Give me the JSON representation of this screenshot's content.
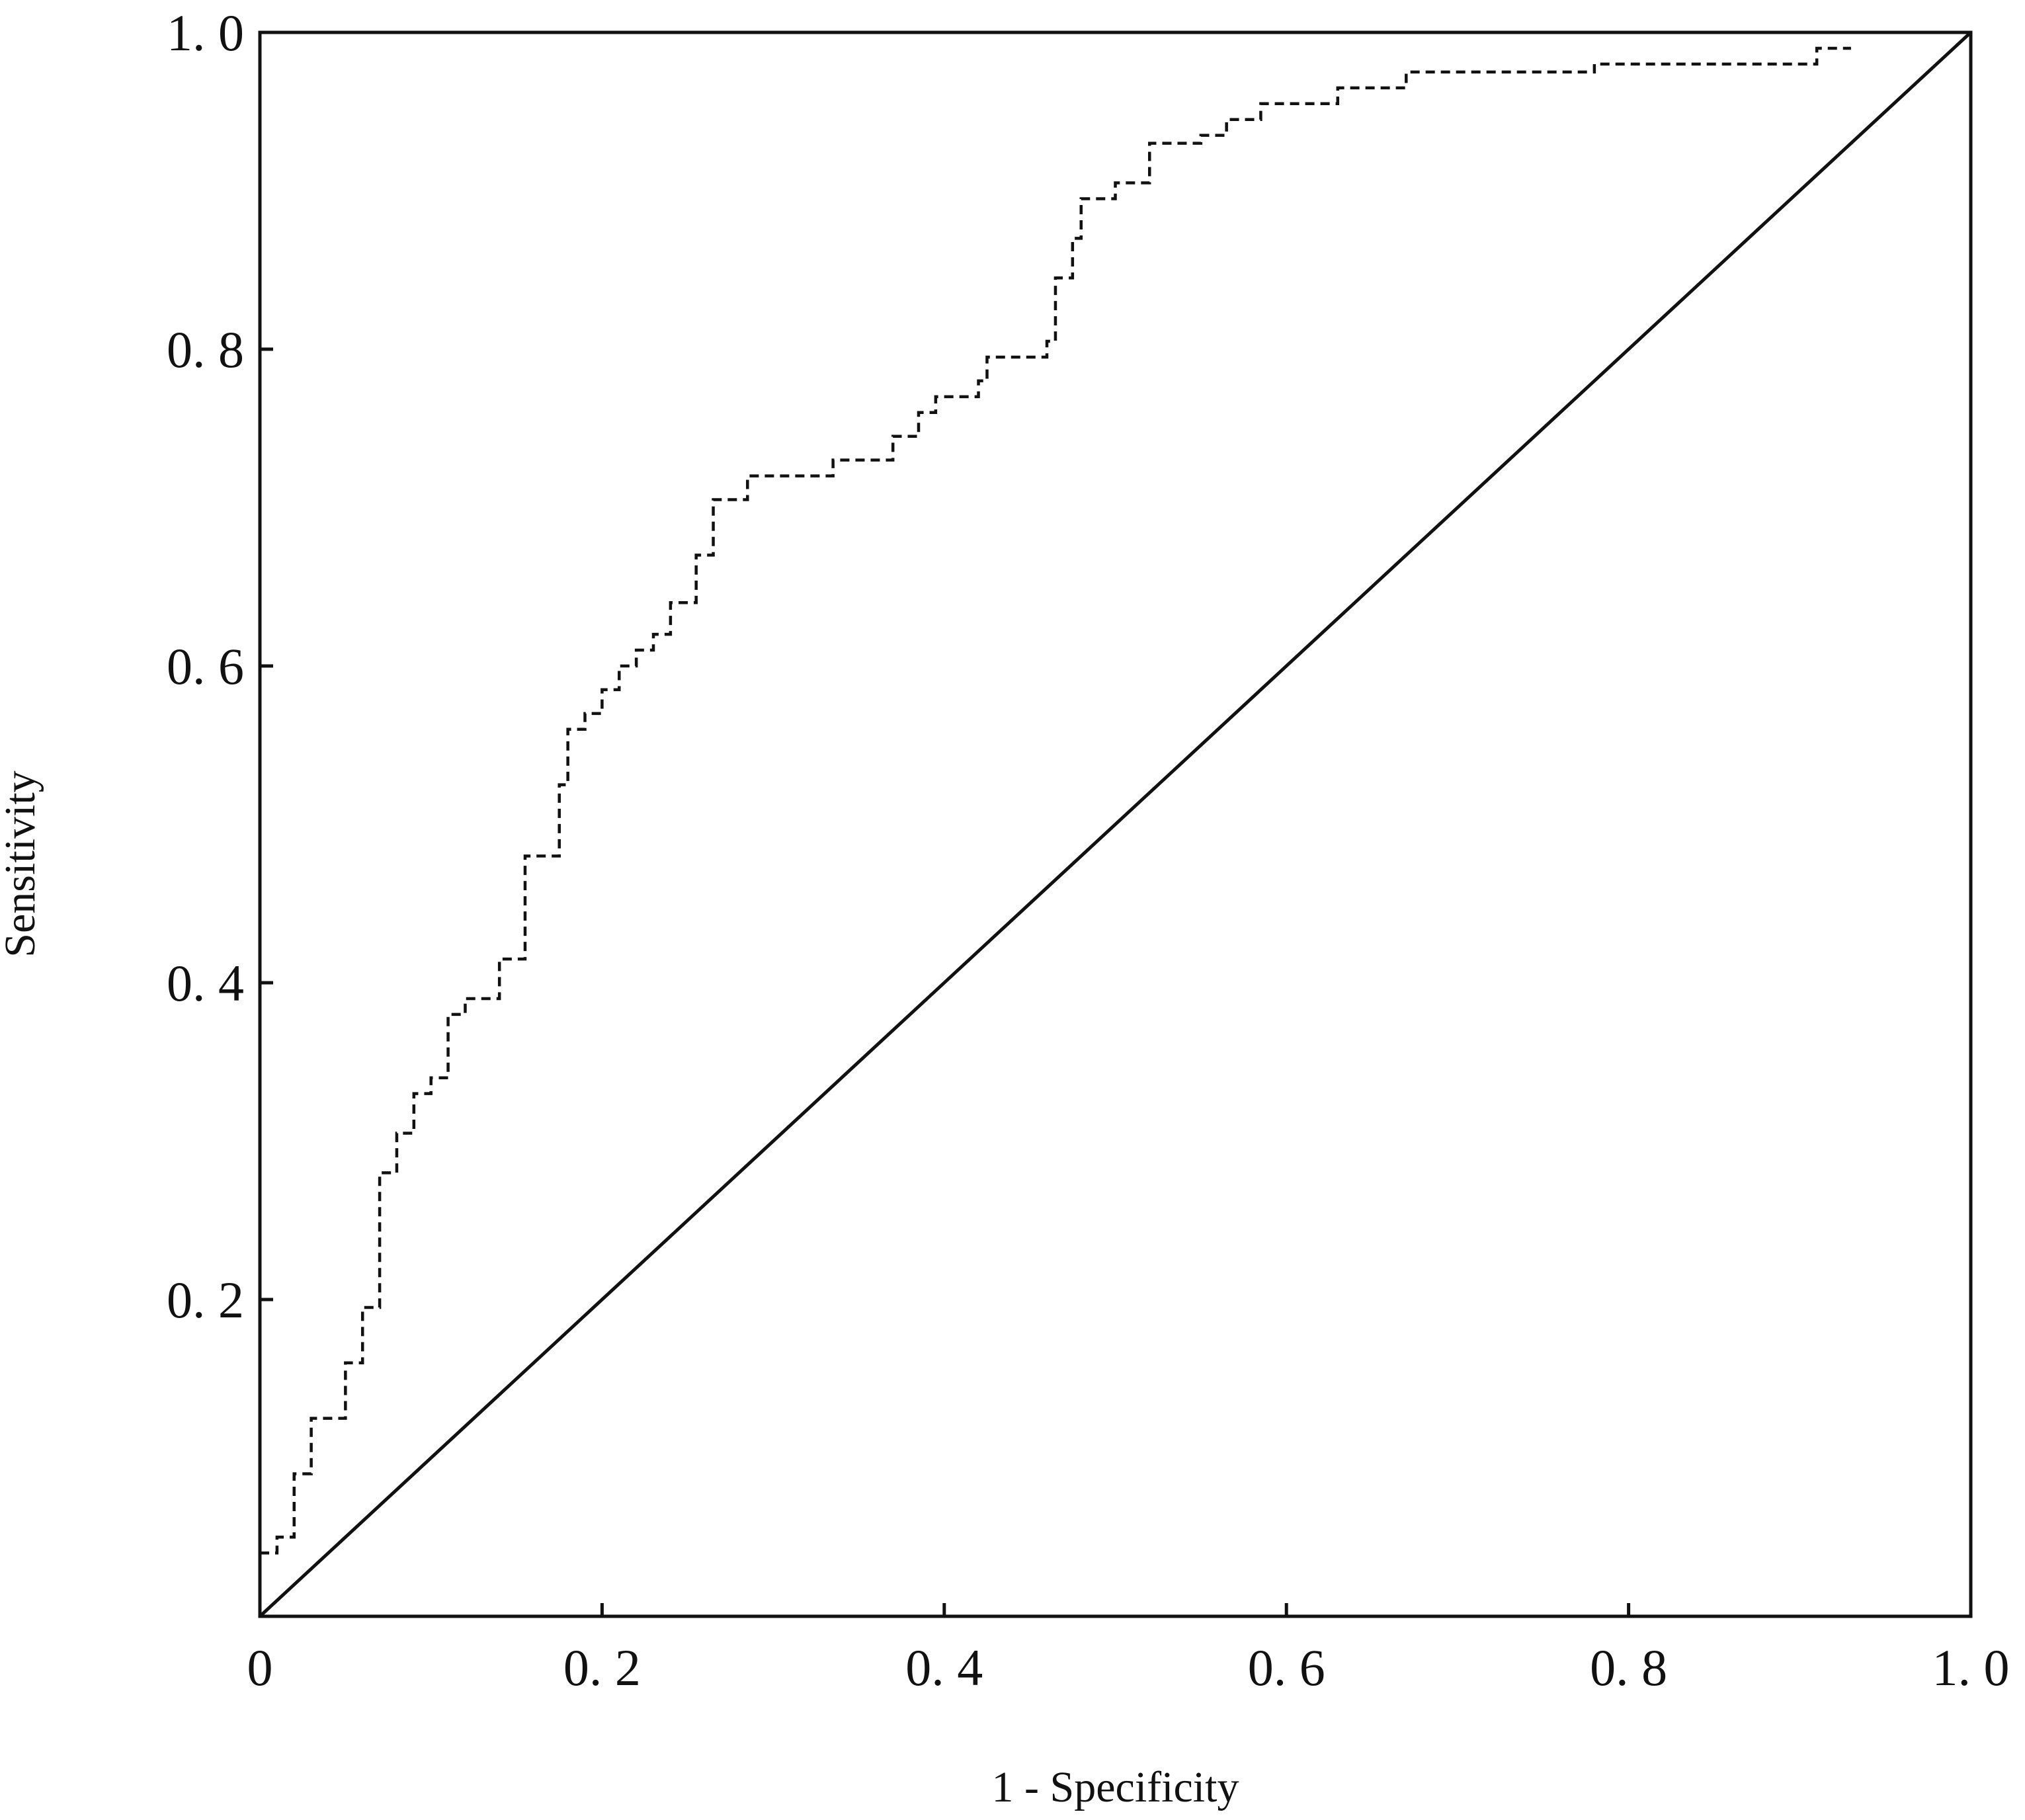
{
  "chart_data": {
    "type": "line",
    "title": "",
    "xlabel": "1 - Specificity",
    "ylabel": "Sensitivity",
    "xlim": [
      0,
      1
    ],
    "ylim": [
      0,
      1
    ],
    "x_ticks": [
      0,
      0.2,
      0.4,
      0.6,
      0.8,
      1.0
    ],
    "x_tick_labels": [
      "0",
      "0. 2",
      "0. 4",
      "0. 6",
      "0. 8",
      "1. 0"
    ],
    "y_ticks": [
      0.2,
      0.4,
      0.6,
      0.8,
      1.0
    ],
    "y_tick_labels": [
      "0. 2",
      "0. 4",
      "0. 6",
      "0. 8",
      "1. 0"
    ],
    "grid": false,
    "legend": "none",
    "series": [
      {
        "style": "dashed",
        "color": "#111111",
        "step": true,
        "x": [
          0.0,
          0.01,
          0.02,
          0.03,
          0.05,
          0.06,
          0.07,
          0.08,
          0.09,
          0.1,
          0.11,
          0.12,
          0.14,
          0.155,
          0.175,
          0.18,
          0.19,
          0.2,
          0.21,
          0.22,
          0.23,
          0.24,
          0.255,
          0.265,
          0.285,
          0.335,
          0.37,
          0.385,
          0.395,
          0.42,
          0.425,
          0.46,
          0.465,
          0.475,
          0.48,
          0.5,
          0.52,
          0.55,
          0.565,
          0.585,
          0.63,
          0.67,
          0.72,
          0.78,
          0.88,
          0.91,
          0.93
        ],
        "y": [
          0.04,
          0.05,
          0.09,
          0.125,
          0.16,
          0.195,
          0.28,
          0.305,
          0.33,
          0.34,
          0.38,
          0.39,
          0.415,
          0.48,
          0.525,
          0.56,
          0.57,
          0.585,
          0.6,
          0.61,
          0.62,
          0.64,
          0.67,
          0.705,
          0.72,
          0.73,
          0.745,
          0.76,
          0.77,
          0.78,
          0.795,
          0.805,
          0.845,
          0.87,
          0.895,
          0.905,
          0.93,
          0.935,
          0.945,
          0.955,
          0.965,
          0.975,
          0.975,
          0.98,
          0.98,
          0.99,
          0.99
        ]
      },
      {
        "style": "solid",
        "color": "#111111",
        "x": [
          0,
          1
        ],
        "y": [
          0,
          1
        ]
      }
    ]
  }
}
